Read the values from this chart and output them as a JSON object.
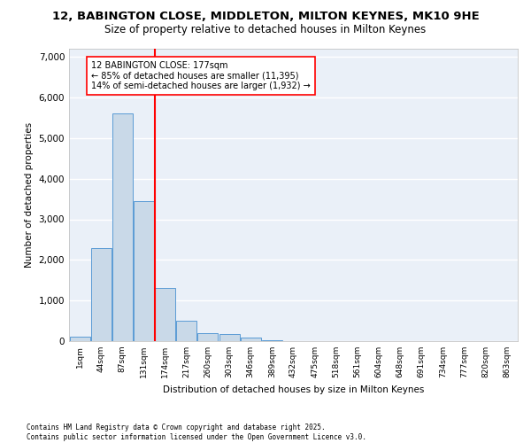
{
  "title_line1": "12, BABINGTON CLOSE, MIDDLETON, MILTON KEYNES, MK10 9HE",
  "title_line2": "Size of property relative to detached houses in Milton Keynes",
  "xlabel": "Distribution of detached houses by size in Milton Keynes",
  "ylabel": "Number of detached properties",
  "bin_labels": [
    "1sqm",
    "44sqm",
    "87sqm",
    "131sqm",
    "174sqm",
    "217sqm",
    "260sqm",
    "303sqm",
    "346sqm",
    "389sqm",
    "432sqm",
    "475sqm",
    "518sqm",
    "561sqm",
    "604sqm",
    "648sqm",
    "691sqm",
    "734sqm",
    "777sqm",
    "820sqm",
    "863sqm"
  ],
  "bar_values": [
    120,
    2300,
    5600,
    3450,
    1310,
    510,
    195,
    185,
    80,
    30,
    0,
    0,
    0,
    0,
    0,
    0,
    0,
    0,
    0,
    0,
    0
  ],
  "bar_color": "#c9d9e8",
  "bar_edge_color": "#5b9bd5",
  "vline_position": 3.5,
  "vline_color": "red",
  "annotation_title": "12 BABINGTON CLOSE: 177sqm",
  "annotation_line2": "← 85% of detached houses are smaller (11,395)",
  "annotation_line3": "14% of semi-detached houses are larger (1,932) →",
  "ylim": [
    0,
    7200
  ],
  "yticks": [
    0,
    1000,
    2000,
    3000,
    4000,
    5000,
    6000,
    7000
  ],
  "background_color": "#eaf0f8",
  "grid_color": "white",
  "footer_line1": "Contains HM Land Registry data © Crown copyright and database right 2025.",
  "footer_line2": "Contains public sector information licensed under the Open Government Licence v3.0."
}
